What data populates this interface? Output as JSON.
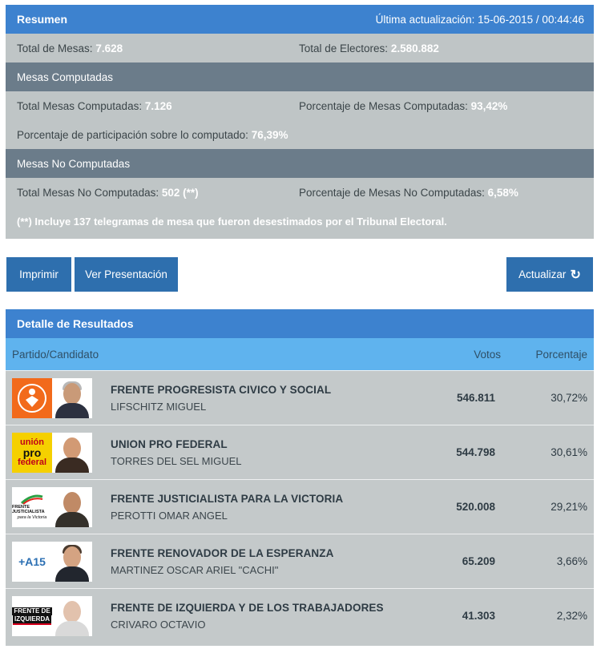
{
  "resumen": {
    "title": "Resumen",
    "updated": "Última actualización: 15-06-2015 / 00:44:46",
    "total_mesas_label": "Total de Mesas:",
    "total_mesas": "7.628",
    "total_electores_label": "Total de Electores:",
    "total_electores": "2.580.882",
    "computadas": {
      "title": "Mesas Computadas",
      "total_label": "Total Mesas Computadas:",
      "total": "7.126",
      "pct_label": "Porcentaje de Mesas Computadas:",
      "pct": "93,42%",
      "participacion_label": "Porcentaje de participación sobre lo computado:",
      "participacion": "76,39%"
    },
    "no_computadas": {
      "title": "Mesas No Computadas",
      "total_label": "Total Mesas No Computadas:",
      "total": "502 (**)",
      "pct_label": "Porcentaje de Mesas No Computadas:",
      "pct": "6,58%",
      "note": "(**) Incluye 137 telegramas de mesa que fueron desestimados por el Tribunal Electoral."
    }
  },
  "buttons": {
    "imprimir": "Imprimir",
    "presentacion": "Ver Presentación",
    "actualizar": "Actualizar",
    "refresh_icon": "refresh-icon"
  },
  "detalle": {
    "title": "Detalle de Resultados",
    "columns": {
      "partido": "Partido/Candidato",
      "votos": "Votos",
      "porcentaje": "Porcentaje"
    },
    "results": [
      {
        "party": "FRENTE PROGRESISTA CIVICO Y SOCIAL",
        "candidate": "LIFSCHITZ MIGUEL",
        "votes": "546.811",
        "pct": "30,72%",
        "logo_color": "#f26a1b"
      },
      {
        "party": "UNION PRO FEDERAL",
        "candidate": "TORRES DEL SEL MIGUEL",
        "votes": "544.798",
        "pct": "30,61%",
        "logo_color": "#f5d000",
        "logo_text_1": "unión",
        "logo_text_2": "pro",
        "logo_text_3": "federal"
      },
      {
        "party": "FRENTE JUSTICIALISTA PARA LA VICTORIA",
        "candidate": "PEROTTI OMAR ANGEL",
        "votes": "520.008",
        "pct": "29,21%",
        "logo_color": "#ffffff",
        "logo_text_1": "FRENTE JUSTICIALISTA",
        "logo_text_2": "para la Victoria"
      },
      {
        "party": "FRENTE RENOVADOR DE LA ESPERANZA",
        "candidate": "MARTINEZ OSCAR ARIEL \"CACHI\"",
        "votes": "65.209",
        "pct": "3,66%",
        "logo_color": "#ffffff",
        "logo_text_1": "+A15"
      },
      {
        "party": "FRENTE DE IZQUIERDA Y DE LOS TRABAJADORES",
        "candidate": "CRIVARO OCTAVIO",
        "votes": "41.303",
        "pct": "2,32%",
        "logo_color": "#ffffff",
        "logo_text_1": "FRENTE DE",
        "logo_text_2": "IZQUIERDA"
      }
    ]
  }
}
